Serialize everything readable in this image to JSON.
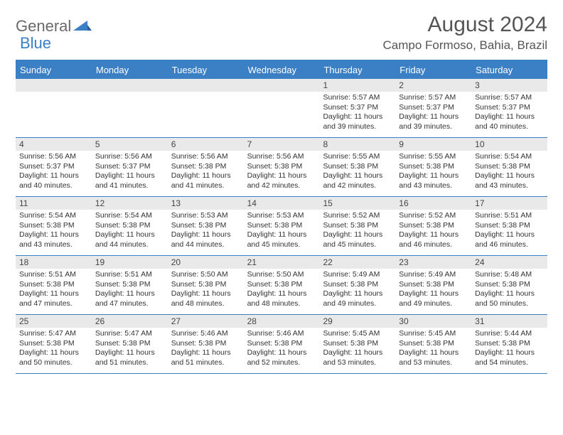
{
  "logo": {
    "word1": "General",
    "word2": "Blue"
  },
  "title": "August 2024",
  "location": "Campo Formoso, Bahia, Brazil",
  "colors": {
    "header_bg": "#3b7fc4",
    "header_text": "#ffffff",
    "daynum_bg": "#e9e9e9",
    "border": "#3b7fc4",
    "body_text": "#333333",
    "title_text": "#555555"
  },
  "weekdays": [
    "Sunday",
    "Monday",
    "Tuesday",
    "Wednesday",
    "Thursday",
    "Friday",
    "Saturday"
  ],
  "weeks": [
    [
      null,
      null,
      null,
      null,
      {
        "day": "1",
        "sunrise": "Sunrise: 5:57 AM",
        "sunset": "Sunset: 5:37 PM",
        "daylight1": "Daylight: 11 hours",
        "daylight2": "and 39 minutes."
      },
      {
        "day": "2",
        "sunrise": "Sunrise: 5:57 AM",
        "sunset": "Sunset: 5:37 PM",
        "daylight1": "Daylight: 11 hours",
        "daylight2": "and 39 minutes."
      },
      {
        "day": "3",
        "sunrise": "Sunrise: 5:57 AM",
        "sunset": "Sunset: 5:37 PM",
        "daylight1": "Daylight: 11 hours",
        "daylight2": "and 40 minutes."
      }
    ],
    [
      {
        "day": "4",
        "sunrise": "Sunrise: 5:56 AM",
        "sunset": "Sunset: 5:37 PM",
        "daylight1": "Daylight: 11 hours",
        "daylight2": "and 40 minutes."
      },
      {
        "day": "5",
        "sunrise": "Sunrise: 5:56 AM",
        "sunset": "Sunset: 5:37 PM",
        "daylight1": "Daylight: 11 hours",
        "daylight2": "and 41 minutes."
      },
      {
        "day": "6",
        "sunrise": "Sunrise: 5:56 AM",
        "sunset": "Sunset: 5:38 PM",
        "daylight1": "Daylight: 11 hours",
        "daylight2": "and 41 minutes."
      },
      {
        "day": "7",
        "sunrise": "Sunrise: 5:56 AM",
        "sunset": "Sunset: 5:38 PM",
        "daylight1": "Daylight: 11 hours",
        "daylight2": "and 42 minutes."
      },
      {
        "day": "8",
        "sunrise": "Sunrise: 5:55 AM",
        "sunset": "Sunset: 5:38 PM",
        "daylight1": "Daylight: 11 hours",
        "daylight2": "and 42 minutes."
      },
      {
        "day": "9",
        "sunrise": "Sunrise: 5:55 AM",
        "sunset": "Sunset: 5:38 PM",
        "daylight1": "Daylight: 11 hours",
        "daylight2": "and 43 minutes."
      },
      {
        "day": "10",
        "sunrise": "Sunrise: 5:54 AM",
        "sunset": "Sunset: 5:38 PM",
        "daylight1": "Daylight: 11 hours",
        "daylight2": "and 43 minutes."
      }
    ],
    [
      {
        "day": "11",
        "sunrise": "Sunrise: 5:54 AM",
        "sunset": "Sunset: 5:38 PM",
        "daylight1": "Daylight: 11 hours",
        "daylight2": "and 43 minutes."
      },
      {
        "day": "12",
        "sunrise": "Sunrise: 5:54 AM",
        "sunset": "Sunset: 5:38 PM",
        "daylight1": "Daylight: 11 hours",
        "daylight2": "and 44 minutes."
      },
      {
        "day": "13",
        "sunrise": "Sunrise: 5:53 AM",
        "sunset": "Sunset: 5:38 PM",
        "daylight1": "Daylight: 11 hours",
        "daylight2": "and 44 minutes."
      },
      {
        "day": "14",
        "sunrise": "Sunrise: 5:53 AM",
        "sunset": "Sunset: 5:38 PM",
        "daylight1": "Daylight: 11 hours",
        "daylight2": "and 45 minutes."
      },
      {
        "day": "15",
        "sunrise": "Sunrise: 5:52 AM",
        "sunset": "Sunset: 5:38 PM",
        "daylight1": "Daylight: 11 hours",
        "daylight2": "and 45 minutes."
      },
      {
        "day": "16",
        "sunrise": "Sunrise: 5:52 AM",
        "sunset": "Sunset: 5:38 PM",
        "daylight1": "Daylight: 11 hours",
        "daylight2": "and 46 minutes."
      },
      {
        "day": "17",
        "sunrise": "Sunrise: 5:51 AM",
        "sunset": "Sunset: 5:38 PM",
        "daylight1": "Daylight: 11 hours",
        "daylight2": "and 46 minutes."
      }
    ],
    [
      {
        "day": "18",
        "sunrise": "Sunrise: 5:51 AM",
        "sunset": "Sunset: 5:38 PM",
        "daylight1": "Daylight: 11 hours",
        "daylight2": "and 47 minutes."
      },
      {
        "day": "19",
        "sunrise": "Sunrise: 5:51 AM",
        "sunset": "Sunset: 5:38 PM",
        "daylight1": "Daylight: 11 hours",
        "daylight2": "and 47 minutes."
      },
      {
        "day": "20",
        "sunrise": "Sunrise: 5:50 AM",
        "sunset": "Sunset: 5:38 PM",
        "daylight1": "Daylight: 11 hours",
        "daylight2": "and 48 minutes."
      },
      {
        "day": "21",
        "sunrise": "Sunrise: 5:50 AM",
        "sunset": "Sunset: 5:38 PM",
        "daylight1": "Daylight: 11 hours",
        "daylight2": "and 48 minutes."
      },
      {
        "day": "22",
        "sunrise": "Sunrise: 5:49 AM",
        "sunset": "Sunset: 5:38 PM",
        "daylight1": "Daylight: 11 hours",
        "daylight2": "and 49 minutes."
      },
      {
        "day": "23",
        "sunrise": "Sunrise: 5:49 AM",
        "sunset": "Sunset: 5:38 PM",
        "daylight1": "Daylight: 11 hours",
        "daylight2": "and 49 minutes."
      },
      {
        "day": "24",
        "sunrise": "Sunrise: 5:48 AM",
        "sunset": "Sunset: 5:38 PM",
        "daylight1": "Daylight: 11 hours",
        "daylight2": "and 50 minutes."
      }
    ],
    [
      {
        "day": "25",
        "sunrise": "Sunrise: 5:47 AM",
        "sunset": "Sunset: 5:38 PM",
        "daylight1": "Daylight: 11 hours",
        "daylight2": "and 50 minutes."
      },
      {
        "day": "26",
        "sunrise": "Sunrise: 5:47 AM",
        "sunset": "Sunset: 5:38 PM",
        "daylight1": "Daylight: 11 hours",
        "daylight2": "and 51 minutes."
      },
      {
        "day": "27",
        "sunrise": "Sunrise: 5:46 AM",
        "sunset": "Sunset: 5:38 PM",
        "daylight1": "Daylight: 11 hours",
        "daylight2": "and 51 minutes."
      },
      {
        "day": "28",
        "sunrise": "Sunrise: 5:46 AM",
        "sunset": "Sunset: 5:38 PM",
        "daylight1": "Daylight: 11 hours",
        "daylight2": "and 52 minutes."
      },
      {
        "day": "29",
        "sunrise": "Sunrise: 5:45 AM",
        "sunset": "Sunset: 5:38 PM",
        "daylight1": "Daylight: 11 hours",
        "daylight2": "and 53 minutes."
      },
      {
        "day": "30",
        "sunrise": "Sunrise: 5:45 AM",
        "sunset": "Sunset: 5:38 PM",
        "daylight1": "Daylight: 11 hours",
        "daylight2": "and 53 minutes."
      },
      {
        "day": "31",
        "sunrise": "Sunrise: 5:44 AM",
        "sunset": "Sunset: 5:38 PM",
        "daylight1": "Daylight: 11 hours",
        "daylight2": "and 54 minutes."
      }
    ]
  ]
}
